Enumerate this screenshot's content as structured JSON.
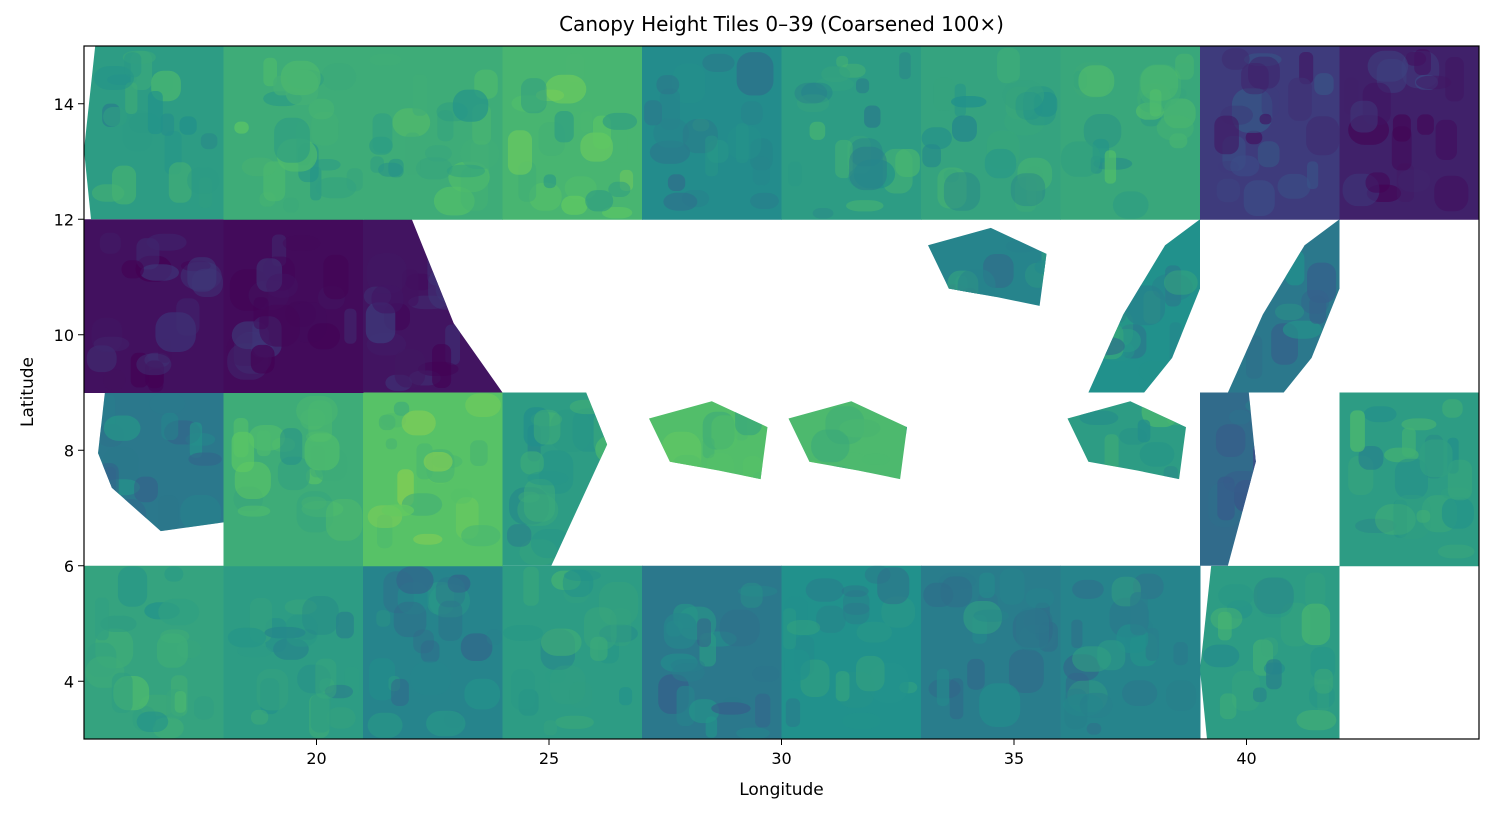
{
  "chart_data": {
    "type": "heatmap",
    "title": "Canopy Height Tiles 0–39 (Coarsened 100×)",
    "xlabel": "Longitude",
    "ylabel": "Latitude",
    "xlim": [
      15,
      45
    ],
    "ylim": [
      3,
      15
    ],
    "xticks": [
      20,
      25,
      30,
      35,
      40
    ],
    "yticks": [
      4,
      6,
      8,
      10,
      12,
      14
    ],
    "colormap": "viridis",
    "grid": false,
    "tile_size_deg": 3,
    "tiles": [
      {
        "lon": [
          15,
          18
        ],
        "lat": [
          3,
          6
        ],
        "level": 0.58
      },
      {
        "lon": [
          18,
          21
        ],
        "lat": [
          3,
          6
        ],
        "level": 0.55
      },
      {
        "lon": [
          21,
          24
        ],
        "lat": [
          3,
          6
        ],
        "level": 0.45
      },
      {
        "lon": [
          24,
          27
        ],
        "lat": [
          3,
          6
        ],
        "level": 0.55
      },
      {
        "lon": [
          27,
          30
        ],
        "lat": [
          3,
          6
        ],
        "level": 0.4
      },
      {
        "lon": [
          30,
          33
        ],
        "lat": [
          3,
          6
        ],
        "level": 0.5
      },
      {
        "lon": [
          33,
          36
        ],
        "lat": [
          3,
          6
        ],
        "level": 0.42
      },
      {
        "lon": [
          36,
          39
        ],
        "lat": [
          3,
          6
        ],
        "level": 0.45
      },
      {
        "lon": [
          39,
          42
        ],
        "lat": [
          3,
          6
        ],
        "level": 0.55,
        "partial": "east"
      },
      {
        "lon": [
          15,
          18
        ],
        "lat": [
          6,
          9
        ],
        "level": 0.4,
        "partial": "coast-north"
      },
      {
        "lon": [
          18,
          21
        ],
        "lat": [
          6,
          9
        ],
        "level": 0.62
      },
      {
        "lon": [
          21,
          24
        ],
        "lat": [
          6,
          9
        ],
        "level": 0.72
      },
      {
        "lon": [
          24,
          27
        ],
        "lat": [
          6,
          9
        ],
        "level": 0.55,
        "partial": "west"
      },
      {
        "lon": [
          27,
          30
        ],
        "lat": [
          6,
          9
        ],
        "level": 0.7,
        "partial": "island"
      },
      {
        "lon": [
          30,
          33
        ],
        "lat": [
          6,
          9
        ],
        "level": 0.68,
        "partial": "island"
      },
      {
        "lon": [
          36,
          39
        ],
        "lat": [
          6,
          9
        ],
        "level": 0.55,
        "partial": "island"
      },
      {
        "lon": [
          39,
          42
        ],
        "lat": [
          6,
          9
        ],
        "level": 0.35,
        "partial": "strip"
      },
      {
        "lon": [
          42,
          45
        ],
        "lat": [
          6,
          9
        ],
        "level": 0.55
      },
      {
        "lon": [
          15,
          18
        ],
        "lat": [
          9,
          12
        ],
        "level": 0.05
      },
      {
        "lon": [
          18,
          21
        ],
        "lat": [
          9,
          12
        ],
        "level": 0.03
      },
      {
        "lon": [
          21,
          24
        ],
        "lat": [
          9,
          12
        ],
        "level": 0.06,
        "partial": "triangle"
      },
      {
        "lon": [
          33,
          36
        ],
        "lat": [
          9,
          12
        ],
        "level": 0.45,
        "partial": "island"
      },
      {
        "lon": [
          36,
          39
        ],
        "lat": [
          9,
          12
        ],
        "level": 0.5,
        "partial": "coast"
      },
      {
        "lon": [
          39,
          42
        ],
        "lat": [
          9,
          12
        ],
        "level": 0.4,
        "partial": "coast"
      },
      {
        "lon": [
          15,
          18
        ],
        "lat": [
          12,
          15
        ],
        "level": 0.55,
        "partial": "east"
      },
      {
        "lon": [
          18,
          21
        ],
        "lat": [
          12,
          15
        ],
        "level": 0.62
      },
      {
        "lon": [
          21,
          24
        ],
        "lat": [
          12,
          15
        ],
        "level": 0.62
      },
      {
        "lon": [
          24,
          27
        ],
        "lat": [
          12,
          15
        ],
        "level": 0.66
      },
      {
        "lon": [
          27,
          30
        ],
        "lat": [
          12,
          15
        ],
        "level": 0.48
      },
      {
        "lon": [
          30,
          33
        ],
        "lat": [
          12,
          15
        ],
        "level": 0.55
      },
      {
        "lon": [
          33,
          36
        ],
        "lat": [
          12,
          15
        ],
        "level": 0.58
      },
      {
        "lon": [
          36,
          39
        ],
        "lat": [
          12,
          15
        ],
        "level": 0.6
      },
      {
        "lon": [
          39,
          42
        ],
        "lat": [
          12,
          15
        ],
        "level": 0.18
      },
      {
        "lon": [
          42,
          45
        ],
        "lat": [
          12,
          15
        ],
        "level": 0.1
      }
    ]
  }
}
